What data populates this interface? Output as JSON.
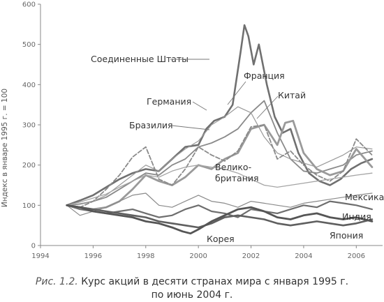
{
  "chart_data": {
    "type": "line",
    "title": "",
    "xlabel": "",
    "ylabel": "Индекс в январе 1995 г. = 100",
    "xlim": [
      1994,
      2007
    ],
    "ylim": [
      0,
      600
    ],
    "x_ticks": [
      "1994",
      "1996",
      "1998",
      "2000",
      "2002",
      "2004",
      "2006"
    ],
    "y_ticks": [
      "0",
      "100",
      "200",
      "300",
      "400",
      "500",
      "600"
    ],
    "grid": false,
    "legend": "none",
    "series": [
      {
        "name": "Соединенные Штаты",
        "color": "#707070",
        "width": 2.6,
        "x": [
          1995.0,
          1995.5,
          1996.0,
          1996.5,
          1997.0,
          1997.5,
          1998.0,
          1998.5,
          1999.0,
          1999.5,
          2000.0,
          2000.3,
          2000.6,
          2001.0,
          2001.3,
          2001.6,
          2001.75,
          2001.9,
          2002.1,
          2002.3,
          2002.6,
          2002.9,
          2003.2,
          2003.5,
          2003.8,
          2004.2,
          2004.6,
          2005.0,
          2005.4,
          2005.8,
          2006.2,
          2006.6
        ],
        "y": [
          100,
          112,
          125,
          145,
          165,
          180,
          190,
          185,
          215,
          245,
          250,
          290,
          310,
          320,
          350,
          480,
          548,
          520,
          450,
          500,
          400,
          320,
          280,
          290,
          230,
          180,
          160,
          150,
          165,
          190,
          205,
          215
        ]
      },
      {
        "name": "Франция",
        "color": "#8a8a8a",
        "width": 1.8,
        "x": [
          1995.0,
          1995.5,
          1996.0,
          1996.5,
          1997.0,
          1997.5,
          1998.0,
          1998.5,
          1999.0,
          1999.5,
          2000.0,
          2000.5,
          2001.0,
          2001.5,
          2002.0,
          2002.5,
          2003.0,
          2003.5,
          2004.0,
          2004.5,
          2005.0,
          2005.5,
          2006.0,
          2006.6
        ],
        "y": [
          100,
          103,
          110,
          120,
          140,
          160,
          180,
          175,
          200,
          215,
          245,
          255,
          270,
          290,
          330,
          360,
          280,
          215,
          185,
          180,
          190,
          200,
          225,
          235
        ]
      },
      {
        "name": "Германия",
        "color": "#9a9a9a",
        "width": 1.2,
        "x": [
          1995.0,
          1995.5,
          1996.0,
          1996.5,
          1997.0,
          1997.5,
          1998.0,
          1998.5,
          1999.0,
          1999.5,
          2000.0,
          2000.5,
          2001.0,
          2001.5,
          2002.0,
          2002.5,
          2003.0,
          2003.5,
          2004.0,
          2004.5,
          2005.0,
          2005.5,
          2006.0,
          2006.6
        ],
        "y": [
          100,
          104,
          110,
          125,
          150,
          175,
          200,
          185,
          215,
          240,
          260,
          300,
          320,
          345,
          330,
          270,
          230,
          215,
          205,
          195,
          210,
          225,
          245,
          240
        ]
      },
      {
        "name": "Китай",
        "color": "#9a9a9a",
        "width": 2.8,
        "x": [
          1995.0,
          1995.5,
          1996.0,
          1996.5,
          1997.0,
          1997.5,
          1998.0,
          1998.5,
          1999.0,
          1999.5,
          2000.0,
          2000.5,
          2001.0,
          2001.5,
          2002.0,
          2002.5,
          2003.0,
          2003.3,
          2003.6,
          2004.0,
          2004.5,
          2005.0,
          2005.5,
          2006.0,
          2006.6
        ],
        "y": [
          100,
          95,
          90,
          95,
          110,
          140,
          175,
          160,
          150,
          170,
          200,
          190,
          215,
          230,
          290,
          300,
          250,
          305,
          310,
          230,
          190,
          175,
          185,
          240,
          195
        ]
      },
      {
        "name": "Бразилия",
        "color": "#8a8a8a",
        "width": 1.8,
        "dash": "6,3",
        "x": [
          1995.0,
          1995.5,
          1996.0,
          1996.5,
          1997.0,
          1997.5,
          1998.0,
          1998.5,
          1999.0,
          1999.5,
          2000.0,
          2000.5,
          2001.0,
          2001.5,
          2002.0,
          2002.5,
          2003.0,
          2003.5,
          2004.0,
          2004.5,
          2005.0,
          2005.5,
          2006.0,
          2006.6
        ],
        "y": [
          100,
          95,
          110,
          140,
          175,
          220,
          245,
          165,
          150,
          190,
          245,
          225,
          210,
          235,
          295,
          300,
          215,
          235,
          200,
          175,
          160,
          185,
          265,
          225
        ]
      },
      {
        "name": "Великобритания",
        "color": "#a5a5a5",
        "width": 1.3,
        "x": [
          1995.0,
          1995.5,
          1996.0,
          1996.5,
          1997.0,
          1997.5,
          1998.0,
          1998.5,
          1999.0,
          1999.5,
          2000.0,
          2000.5,
          2001.0,
          2001.5,
          2002.0,
          2002.5,
          2003.0,
          2003.5,
          2004.0,
          2004.5,
          2005.0,
          2005.5,
          2006.0,
          2006.6
        ],
        "y": [
          100,
          108,
          118,
          128,
          145,
          160,
          175,
          170,
          185,
          195,
          200,
          195,
          190,
          180,
          165,
          150,
          145,
          150,
          155,
          160,
          165,
          170,
          175,
          180
        ]
      },
      {
        "name": "Мексика",
        "color": "#8a8a8a",
        "width": 1.2,
        "x": [
          1995.0,
          1995.5,
          1996.0,
          1996.5,
          1997.0,
          1997.5,
          1998.0,
          1998.5,
          1999.0,
          1999.5,
          2000.0,
          2000.5,
          2001.0,
          2001.5,
          2002.0,
          2002.5,
          2003.0,
          2003.5,
          2004.0,
          2004.5,
          2005.0,
          2005.5,
          2006.0,
          2006.6
        ],
        "y": [
          100,
          75,
          85,
          95,
          110,
          125,
          130,
          100,
          95,
          110,
          125,
          110,
          105,
          95,
          110,
          105,
          100,
          95,
          105,
          110,
          115,
          120,
          125,
          130
        ]
      },
      {
        "name": "Индия",
        "color": "#6e6e6e",
        "width": 2.2,
        "x": [
          1995.0,
          1995.5,
          1996.0,
          1996.5,
          1997.0,
          1997.5,
          1998.0,
          1998.5,
          1999.0,
          1999.5,
          2000.0,
          2000.5,
          2001.0,
          2001.5,
          2002.0,
          2002.5,
          2003.0,
          2003.5,
          2004.0,
          2004.5,
          2005.0,
          2005.5,
          2006.0,
          2006.6
        ],
        "y": [
          100,
          90,
          85,
          80,
          85,
          90,
          80,
          70,
          75,
          90,
          100,
          85,
          80,
          70,
          90,
          85,
          80,
          90,
          100,
          95,
          110,
          105,
          100,
          90
        ]
      },
      {
        "name": "Япония",
        "color": "#5f5f5f",
        "width": 2.6,
        "x": [
          1995.0,
          1995.5,
          1996.0,
          1996.5,
          1997.0,
          1997.5,
          1998.0,
          1998.5,
          1999.0,
          1999.5,
          2000.0,
          2000.5,
          2001.0,
          2001.5,
          2002.0,
          2002.5,
          2003.0,
          2003.5,
          2004.0,
          2004.5,
          2005.0,
          2005.5,
          2006.0,
          2006.6
        ],
        "y": [
          100,
          95,
          90,
          85,
          80,
          75,
          70,
          60,
          55,
          50,
          45,
          55,
          70,
          75,
          70,
          65,
          55,
          50,
          55,
          60,
          55,
          50,
          55,
          65
        ]
      },
      {
        "name": "Корея",
        "color": "#555555",
        "width": 2.8,
        "x": [
          1995.0,
          1995.5,
          1996.0,
          1996.5,
          1997.0,
          1997.5,
          1998.0,
          1998.5,
          1999.0,
          1999.4,
          1999.7,
          2000.0,
          2000.5,
          2001.0,
          2001.5,
          2002.0,
          2002.5,
          2003.0,
          2003.5,
          2004.0,
          2004.5,
          2005.0,
          2005.5,
          2006.0,
          2006.6
        ],
        "y": [
          100,
          95,
          85,
          80,
          75,
          70,
          60,
          55,
          45,
          35,
          30,
          40,
          60,
          75,
          90,
          95,
          85,
          70,
          65,
          75,
          80,
          70,
          65,
          70,
          60
        ]
      }
    ],
    "annotations": [
      "Соединенные Штаты",
      "Франция",
      "Германия",
      "Китай",
      "Бразилия",
      "Велико-",
      "британия",
      "Мексика",
      "Индия",
      "Япония",
      "Корея"
    ]
  },
  "caption": {
    "prefix": "Рис. 1.2.",
    "line1": "Курс акций в десяти странах мира с января 1995 г.",
    "line2": "по июнь 2004 г."
  }
}
